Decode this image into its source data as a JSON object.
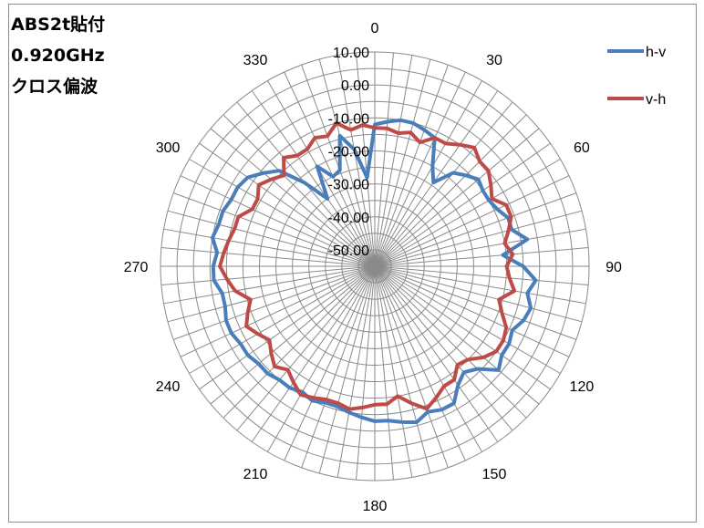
{
  "title_lines": [
    "ABS2t貼付",
    "0.920GHz",
    "クロス偏波"
  ],
  "chart_data": {
    "type": "radar",
    "angle_tick_labels": [
      "0",
      "30",
      "60",
      "90",
      "120",
      "150",
      "180",
      "210",
      "240",
      "270",
      "300",
      "330"
    ],
    "radial_tick_labels": [
      "10.00",
      "0.00",
      "-10.00",
      "-20.00",
      "-30.00",
      "-40.00",
      "-50.00"
    ],
    "rlim": [
      -55,
      10
    ],
    "grid": true,
    "legend_position": "top-right",
    "series": [
      {
        "name": "h-v",
        "color": "#4a7ebb",
        "values": [
          -12,
          -11,
          -10,
          -10,
          -11,
          -12,
          -20,
          -24,
          -18,
          -16,
          -14,
          -15,
          -15,
          -14,
          -12,
          -12,
          -8,
          -16,
          -10,
          -6,
          -8,
          -6,
          -7,
          -9,
          -8,
          -8,
          -6,
          -11,
          -13,
          -11,
          -7,
          -7,
          -8,
          -6,
          -7,
          -8,
          -8,
          -9,
          -10,
          -11,
          -11,
          -10,
          -11,
          -10,
          -10,
          -9,
          -9,
          -8,
          -8,
          -7,
          -7,
          -8,
          -8,
          -6,
          -6,
          -7,
          -5,
          -6,
          -6,
          -7,
          -7,
          -8,
          -11,
          -14,
          -22,
          -30,
          -20,
          -25,
          -24,
          -14,
          -19,
          -28
        ]
      },
      {
        "name": "v-h",
        "color": "#be4b48",
        "values": [
          -13,
          -13,
          -14,
          -13,
          -15,
          -12,
          -12,
          -10,
          -8,
          -10,
          -10,
          -12,
          -14,
          -11,
          -11,
          -13,
          -15,
          -13,
          -15,
          -14,
          -12,
          -16,
          -14,
          -11,
          -10,
          -10,
          -12,
          -15,
          -16,
          -13,
          -13,
          -11,
          -9,
          -12,
          -15,
          -13,
          -13,
          -12,
          -11,
          -12,
          -12,
          -11,
          -10,
          -12,
          -14,
          -12,
          -14,
          -16,
          -14,
          -12,
          -14,
          -16,
          -12,
          -10,
          -8,
          -9,
          -10,
          -11,
          -11,
          -14,
          -14,
          -12,
          -14,
          -16,
          -12,
          -14,
          -14,
          -12,
          -13,
          -10,
          -13,
          -12
        ]
      }
    ]
  }
}
